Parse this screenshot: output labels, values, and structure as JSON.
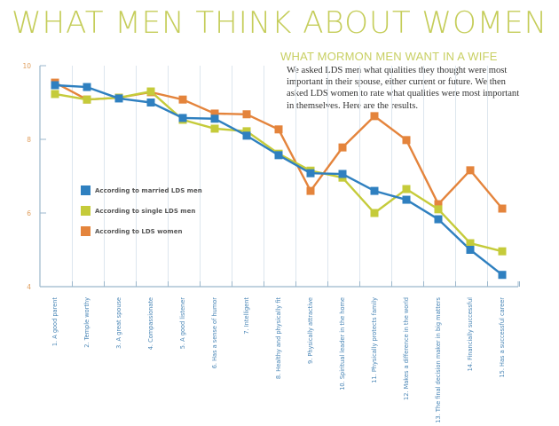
{
  "page": {
    "title": "WHAT MEN THINK ABOUT WOMEN",
    "subtitle": "WHAT MORMON MEN WANT IN A WIFE",
    "intro": "We asked LDS men what qualities they thought were most important in their spouse, either current or future. We then asked LDS women to rate what qualities were most important in themselves. Here are the results."
  },
  "colors": {
    "title": "#c5cd5a",
    "married": "#2f80c0",
    "single": "#c5cb3a",
    "women": "#e4843c",
    "axis": "#9bb7cc",
    "grid": "#dde6ee",
    "tick_label": "#e0a060",
    "category_label": "#4a86b6"
  },
  "chart_data": {
    "type": "line",
    "title": "WHAT MORMON MEN WANT IN A WIFE",
    "xlabel": "",
    "ylabel": "",
    "ylim": [
      4,
      10
    ],
    "yticks": [
      4,
      6,
      8,
      10
    ],
    "grid": "vertical",
    "legend_position": "left-middle",
    "categories": [
      "1. A good parent",
      "2. Temple worthy",
      "3. A great spouse",
      "4. Compassionate",
      "5. A good listener",
      "6. Has a sense of humor",
      "7. Intelligent",
      "8. Healthy and physically fit",
      "9. Physically attractive",
      "10. Spiritual leader in the home",
      "11. Physically protects family",
      "12. Makes a difference in the world",
      "13. The final decision maker in big matters",
      "14. Financially successful",
      "15. Has a successful career"
    ],
    "series": [
      {
        "name": "According to married LDS men",
        "color_key": "married",
        "values": [
          9.47,
          9.42,
          9.11,
          9.0,
          8.58,
          8.56,
          8.1,
          7.57,
          7.08,
          7.06,
          6.6,
          6.36,
          5.83,
          5.0,
          4.32
        ]
      },
      {
        "name": "According to single LDS men",
        "color_key": "single",
        "values": [
          9.23,
          9.08,
          9.13,
          9.3,
          8.53,
          8.29,
          8.22,
          7.61,
          7.15,
          6.96,
          6.0,
          6.65,
          6.1,
          5.18,
          4.96
        ]
      },
      {
        "name": "According to LDS women",
        "color_key": "women",
        "values": [
          9.54,
          9.08,
          9.13,
          9.28,
          9.08,
          8.7,
          8.68,
          8.27,
          6.6,
          7.78,
          8.63,
          7.98,
          6.24,
          7.16,
          6.12
        ]
      }
    ]
  }
}
